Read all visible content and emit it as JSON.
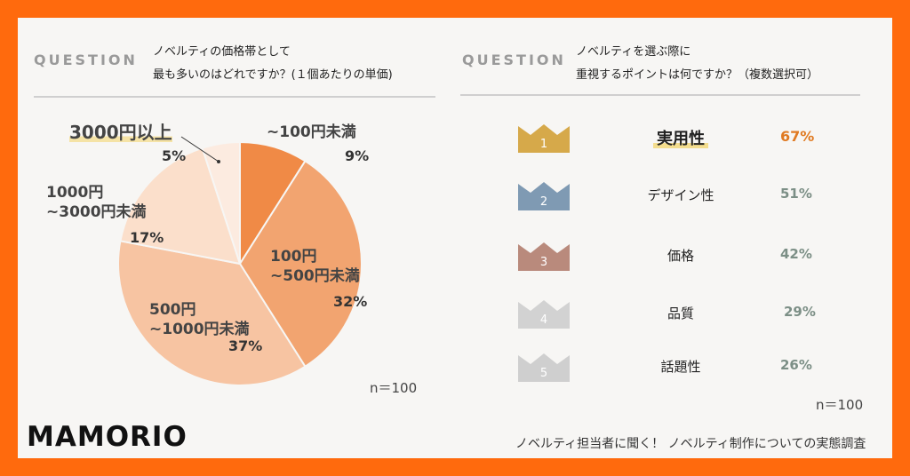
{
  "left": {
    "question_label": "QUESTION",
    "question_line1": "ノベルティの価格帯として",
    "question_line2": "最も多いのはどれですか？(１個あたりの単価)",
    "n_label": "n＝100"
  },
  "right": {
    "question_label": "QUESTION",
    "question_line1": "ノベルティを選ぶ際に",
    "question_line2": "重視するポイントは何ですか？（複数選択可）",
    "n_label": "n＝100",
    "ranking": [
      {
        "rank": "1",
        "name": "実用性",
        "percent": "67%",
        "crown_color": "#d6a94a"
      },
      {
        "rank": "2",
        "name": "デザイン性",
        "percent": "51%",
        "crown_color": "#7f9ab3"
      },
      {
        "rank": "3",
        "name": "価格",
        "percent": "42%",
        "crown_color": "#b98a7c"
      },
      {
        "rank": "4",
        "name": "品質",
        "percent": "29%",
        "crown_color": "#d2d2d2"
      },
      {
        "rank": "5",
        "name": "話題性",
        "percent": "26%",
        "crown_color": "#cfcfcf"
      }
    ],
    "top_pct_color": "#e07a22"
  },
  "brand": "MAMORIO",
  "footer": "ノベルティ担当者に聞く！ ノベルティ制作についての実態調査",
  "chart_data": {
    "type": "pie",
    "categories": [
      "~100円未満",
      "100円~500円未満",
      "500円~1000円未満",
      "1000円~3000円未満",
      "3000円以上"
    ],
    "values": [
      9,
      32,
      37,
      17,
      5
    ],
    "value_labels": [
      "9%",
      "32%",
      "37%",
      "17%",
      "5%"
    ],
    "label_lines": [
      [
        "~100円未満"
      ],
      [
        "100円",
        "~500円未満"
      ],
      [
        "500円",
        "~1000円未満"
      ],
      [
        "1000円",
        "~3000円未満"
      ],
      [
        "3000円以上"
      ]
    ],
    "colors": [
      "#f08a46",
      "#f2a470",
      "#f7c4a2",
      "#fbdfcb",
      "#fcebe0"
    ],
    "start_angle_deg": 0,
    "direction": "clockwise"
  }
}
